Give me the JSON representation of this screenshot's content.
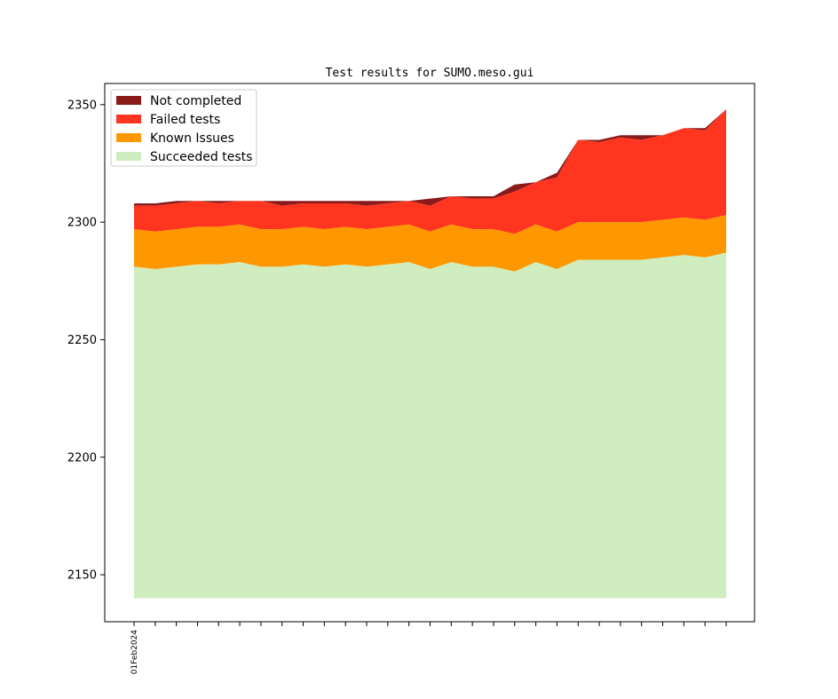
{
  "chart_data": {
    "type": "area",
    "stacked": true,
    "title": "Test results for SUMO.meso.gui",
    "xlabel": "",
    "ylabel": "",
    "ylim": [
      2130,
      2359
    ],
    "yticks": [
      2150,
      2200,
      2250,
      2300,
      2350
    ],
    "x_tick_count": 29,
    "x_tick_labels": [
      "01Feb2024",
      "",
      "",
      "",
      "",
      "",
      "",
      "",
      "",
      "",
      "",
      "",
      "",
      "",
      "",
      "",
      "",
      "",
      "",
      "",
      "",
      "",
      "",
      "",
      "",
      "",
      "",
      "",
      ""
    ],
    "baseline": 2140,
    "legend_position": "top-left",
    "series": [
      {
        "name": "Not completed",
        "color": "#8b1a1a",
        "top": [
          2308,
          2308,
          2309,
          2309,
          2309,
          2309,
          2309,
          2309,
          2309,
          2309,
          2309,
          2309,
          2309,
          2309,
          2310,
          2311,
          2311,
          2311,
          2316,
          2317,
          2321,
          2335,
          2335,
          2337,
          2337,
          2337,
          2340,
          2340,
          2348
        ]
      },
      {
        "name": "Failed tests",
        "color": "#ff3520",
        "top": [
          2307,
          2307,
          2308,
          2309,
          2308,
          2309,
          2309,
          2307,
          2308,
          2308,
          2308,
          2307,
          2308,
          2309,
          2307,
          2311,
          2310,
          2310,
          2313,
          2317,
          2319,
          2335,
          2334,
          2336,
          2335,
          2337,
          2340,
          2339,
          2348
        ]
      },
      {
        "name": "Known Issues",
        "color": "#ff9800",
        "top": [
          2297,
          2296,
          2297,
          2298,
          2298,
          2299,
          2297,
          2297,
          2298,
          2297,
          2298,
          2297,
          2298,
          2299,
          2296,
          2299,
          2297,
          2297,
          2295,
          2299,
          2296,
          2300,
          2300,
          2300,
          2300,
          2301,
          2302,
          2301,
          2303
        ]
      },
      {
        "name": "Succeeded tests",
        "color": "#cfedbe",
        "top": [
          2281,
          2280,
          2281,
          2282,
          2282,
          2283,
          2281,
          2281,
          2282,
          2281,
          2282,
          2281,
          2282,
          2283,
          2280,
          2283,
          2281,
          2281,
          2279,
          2283,
          2280,
          2284,
          2284,
          2284,
          2284,
          2285,
          2286,
          2285,
          2287
        ]
      }
    ]
  }
}
